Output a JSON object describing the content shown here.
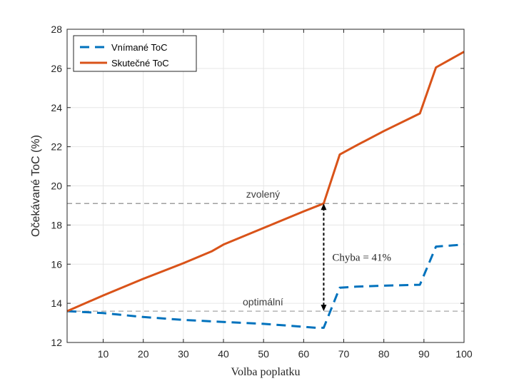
{
  "chart_data": {
    "type": "line",
    "xlabel": "Volba poplatku",
    "ylabel": "Očekávané ToC (%)",
    "xlim": [
      1,
      100
    ],
    "ylim": [
      12,
      28
    ],
    "xticks": [
      10,
      20,
      30,
      40,
      50,
      60,
      70,
      80,
      90,
      100
    ],
    "yticks": [
      12,
      14,
      16,
      18,
      20,
      22,
      24,
      26,
      28
    ],
    "grid": true,
    "legend_position": "top-left",
    "series": [
      {
        "name": "Vnímané ToC",
        "color": "#0072BD",
        "style": "dashed",
        "x": [
          1,
          10,
          20,
          30,
          40,
          50,
          60,
          63,
          65,
          69,
          73,
          80,
          89,
          93,
          100
        ],
        "y": [
          13.6,
          13.5,
          13.3,
          13.15,
          13.05,
          12.95,
          12.8,
          12.75,
          12.75,
          14.8,
          14.85,
          14.9,
          14.95,
          16.9,
          17.0
        ]
      },
      {
        "name": "Skutečné ToC",
        "color": "#D95319",
        "style": "solid",
        "x": [
          1,
          10,
          20,
          30,
          37,
          40,
          50,
          60,
          65,
          69,
          73,
          80,
          89,
          93,
          100
        ],
        "y": [
          13.6,
          14.4,
          15.25,
          16.05,
          16.65,
          17.0,
          17.85,
          18.7,
          19.1,
          21.6,
          22.05,
          22.8,
          23.7,
          26.05,
          26.85
        ]
      }
    ],
    "reference_lines": [
      {
        "label": "zvolený",
        "y": 19.1,
        "color": "#808080"
      },
      {
        "label": "optimální",
        "y": 13.6,
        "color": "#A6A6A6"
      }
    ],
    "annotation": {
      "text": "Chyba = 41%",
      "x": 65,
      "y_from": 19.1,
      "y_to": 13.6
    }
  }
}
